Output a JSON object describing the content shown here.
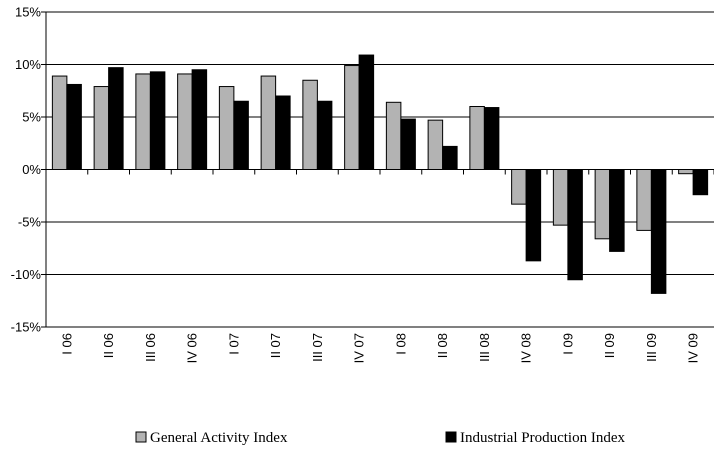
{
  "chart_data": {
    "type": "bar",
    "categories": [
      "I 06",
      "II 06",
      "III 06",
      "IV 06",
      "I 07",
      "II 07",
      "III 07",
      "IV 07",
      "I 08",
      "II 08",
      "III 08",
      "IV 08",
      "I 09",
      "II 09",
      "III 09",
      "IV 09"
    ],
    "series": [
      {
        "name": "General Activity Index",
        "color": "#b3b3b3",
        "values": [
          8.9,
          7.9,
          9.1,
          9.1,
          7.9,
          8.9,
          8.5,
          9.9,
          6.4,
          4.7,
          6.0,
          -3.3,
          -5.3,
          -6.6,
          -5.8,
          -0.4
        ]
      },
      {
        "name": "Industrial Production Index",
        "color": "#000000",
        "values": [
          8.1,
          9.7,
          9.3,
          9.5,
          6.5,
          7.0,
          6.5,
          10.9,
          4.8,
          2.2,
          5.9,
          -8.7,
          -10.5,
          -7.8,
          -11.8,
          -2.4
        ]
      }
    ],
    "yticks": [
      "15%",
      "10%",
      "5%",
      "0%",
      "-5%",
      "-10%",
      "-15%"
    ],
    "ylim": [
      -15,
      15
    ],
    "ytick_step": 5,
    "grid": true,
    "legend_position": "bottom"
  }
}
